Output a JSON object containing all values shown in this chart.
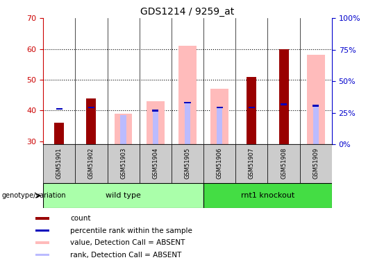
{
  "title": "GDS1214 / 9259_at",
  "samples": [
    "GSM51901",
    "GSM51902",
    "GSM51903",
    "GSM51904",
    "GSM51905",
    "GSM51906",
    "GSM51907",
    "GSM51908",
    "GSM51909"
  ],
  "count_values": [
    36,
    44,
    0,
    0,
    0,
    0,
    51,
    60,
    0
  ],
  "rank_values": [
    40.5,
    41,
    0,
    40,
    42.5,
    41,
    41,
    42,
    41.5
  ],
  "value_absent": [
    0,
    0,
    39,
    43,
    61,
    47,
    0,
    0,
    58
  ],
  "rank_absent": [
    0,
    0,
    38.5,
    40,
    42.5,
    41,
    0,
    0,
    41.5
  ],
  "has_count": [
    true,
    true,
    false,
    false,
    false,
    false,
    true,
    true,
    false
  ],
  "has_rank": [
    true,
    true,
    false,
    true,
    true,
    true,
    true,
    true,
    true
  ],
  "has_absent_val": [
    false,
    false,
    true,
    true,
    true,
    true,
    false,
    false,
    true
  ],
  "has_absent_rank": [
    false,
    false,
    true,
    true,
    true,
    true,
    false,
    false,
    true
  ],
  "ylim_left": [
    29,
    70
  ],
  "ylim_right": [
    0,
    100
  ],
  "yticks_left": [
    30,
    40,
    50,
    60,
    70
  ],
  "yticks_right": [
    0,
    25,
    50,
    75,
    100
  ],
  "ytick_right_labels": [
    "0%",
    "25%",
    "50%",
    "75%",
    "100%"
  ],
  "color_count": "#990000",
  "color_rank": "#0000bb",
  "color_absent_val": "#ffbbbb",
  "color_absent_rank": "#bbbbff",
  "color_wild_bg": "#aaffaa",
  "color_rnt1_bg": "#44dd44",
  "color_sample_bg": "#cccccc",
  "grid_dotted_ticks": [
    40,
    50,
    60
  ],
  "left_ycolor": "#cc0000",
  "right_ycolor": "#0000cc",
  "figwidth": 5.4,
  "figheight": 3.75,
  "dpi": 100
}
